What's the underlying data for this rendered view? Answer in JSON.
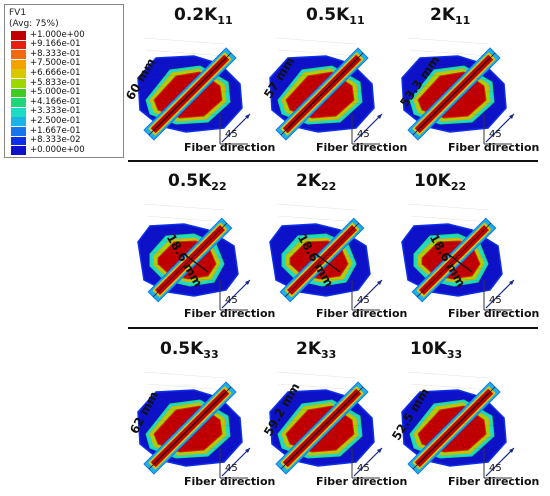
{
  "legend": {
    "title": "FV1",
    "subtitle": "(Avg: 75%)",
    "entries": [
      {
        "value": "+1.000e+00",
        "color": "#c00000"
      },
      {
        "value": "+9.166e-01",
        "color": "#e81e0e"
      },
      {
        "value": "+8.333e-01",
        "color": "#f26a10"
      },
      {
        "value": "+7.500e-01",
        "color": "#f5a200"
      },
      {
        "value": "+6.666e-01",
        "color": "#d9c800"
      },
      {
        "value": "+5.833e-01",
        "color": "#9ed600"
      },
      {
        "value": "+5.000e-01",
        "color": "#3ecb22"
      },
      {
        "value": "+4.166e-01",
        "color": "#1dd67a"
      },
      {
        "value": "+3.333e-01",
        "color": "#1edbc3"
      },
      {
        "value": "+2.500e-01",
        "color": "#19b3e8"
      },
      {
        "value": "+1.667e-01",
        "color": "#1675ea"
      },
      {
        "value": "+8.333e-02",
        "color": "#0d2fe8"
      },
      {
        "value": "+0.000e+00",
        "color": "#0d12c9"
      }
    ]
  },
  "fiber_direction_label": "Fiber direction",
  "angle_label": "45",
  "panels": [
    {
      "coef": "0.2K",
      "sub": "11",
      "measure": "60 mm"
    },
    {
      "coef": "0.5K",
      "sub": "11",
      "measure": "57 mm"
    },
    {
      "coef": "2K",
      "sub": "11",
      "measure": "53.3 mm"
    },
    {
      "coef": "0.5K",
      "sub": "22",
      "measure": "18.6 mm"
    },
    {
      "coef": "2K",
      "sub": "22",
      "measure": "18.6 mm"
    },
    {
      "coef": "10K",
      "sub": "22",
      "measure": "18.6 mm"
    },
    {
      "coef": "0.5K",
      "sub": "33",
      "measure": "62 mm"
    },
    {
      "coef": "2K",
      "sub": "33",
      "measure": "59.2 mm"
    },
    {
      "coef": "10K",
      "sub": "33",
      "measure": "52.5 mm"
    }
  ]
}
